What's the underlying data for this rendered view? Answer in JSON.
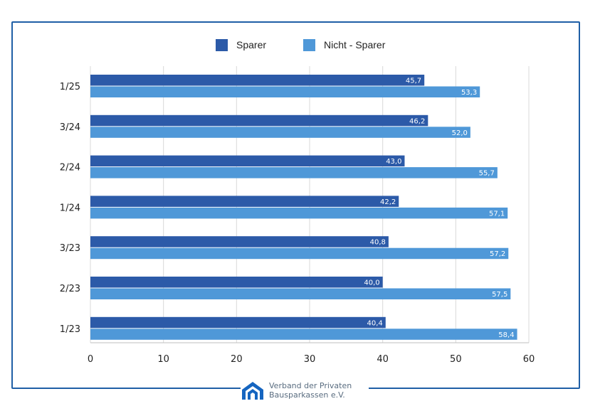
{
  "colors": {
    "sparer": "#2c5aa8",
    "nicht_sparer": "#4f98d8",
    "frame": "#1f5fa6",
    "grid": "#d9d9d9",
    "logo": "#1565c0"
  },
  "legend": {
    "items": [
      "Sparer",
      "Nicht - Sparer"
    ]
  },
  "footer": {
    "line1": "Verband der Privaten",
    "line2": "Bausparkassen e.V."
  },
  "chart_data": {
    "type": "bar",
    "orientation": "horizontal",
    "categories": [
      "1/25",
      "3/24",
      "2/24",
      "1/24",
      "3/23",
      "2/23",
      "1/23"
    ],
    "series": [
      {
        "name": "Sparer",
        "values": [
          45.7,
          46.2,
          43.0,
          42.2,
          40.8,
          40.0,
          40.4
        ],
        "labels": [
          "45,7",
          "46,2",
          "43,0",
          "42,2",
          "40,8",
          "40,0",
          "40,4"
        ]
      },
      {
        "name": "Nicht - Sparer",
        "values": [
          53.3,
          52.0,
          55.7,
          57.1,
          57.2,
          57.5,
          58.4
        ],
        "labels": [
          "53,3",
          "52,0",
          "55,7",
          "57,1",
          "57,2",
          "57,5",
          "58,4"
        ]
      }
    ],
    "xlim": [
      0,
      60
    ],
    "xticks": [
      0,
      10,
      20,
      30,
      40,
      50,
      60
    ],
    "grid": true,
    "legend": "top-center",
    "title": "",
    "xlabel": "",
    "ylabel": ""
  }
}
